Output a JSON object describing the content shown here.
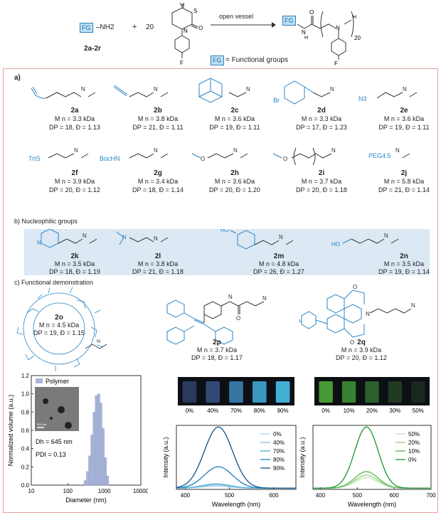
{
  "scheme": {
    "reactant_fg": "FG",
    "reactant_nh2": "–NH2",
    "reactant_label": "2a-2r",
    "plus": "+",
    "equiv": "20",
    "arrow_label": "open vessel",
    "product_fg": "FG",
    "product_sub": "20",
    "legend_fg": "FG",
    "legend_text": "= Functional groups",
    "atom_S": "S",
    "atom_O": "O",
    "atom_N": "N",
    "atom_F": "F",
    "atom_H": "H"
  },
  "section_a": {
    "label": "a)",
    "compounds": [
      {
        "id": "2a",
        "mn": "M n = 3.3 kDa",
        "dp": "DP = 18, Đ = 1.13"
      },
      {
        "id": "2b",
        "mn": "M n = 3.8 kDa",
        "dp": "DP = 21, Đ = 1.11"
      },
      {
        "id": "2c",
        "mn": "M n = 3.6 kDa",
        "dp": "DP = 19, Đ = 1.11"
      },
      {
        "id": "2d",
        "mn": "M n = 3.3 kDa",
        "dp": "DP = 17, Đ = 1.23"
      },
      {
        "id": "2e",
        "mn": "M n = 3.6 kDa",
        "dp": "DP = 19, Đ = 1.11"
      },
      {
        "id": "2f",
        "mn": "M n = 3.9 kDa",
        "dp": "DP = 20, Đ = 1.12"
      },
      {
        "id": "2g",
        "mn": "M n = 3.4 kDa",
        "dp": "DP = 18, Đ = 1.14"
      },
      {
        "id": "2h",
        "mn": "M n = 3.6 kDa",
        "dp": "DP = 20, Đ = 1.20"
      },
      {
        "id": "2i",
        "mn": "M n = 3.7 kDa",
        "dp": "DP = 20, Đ = 1.18"
      },
      {
        "id": "2j",
        "mn": "M n = 5.8 kDa",
        "dp": "DP = 21, Đ = 1.14"
      }
    ],
    "fg_labels": {
      "br": "Br",
      "n3": "N3",
      "trts": "TrtS",
      "bochn": "BocHN",
      "peg": "PEG4.5"
    }
  },
  "section_b": {
    "label": "b) Nucleophilic groups",
    "compounds": [
      {
        "id": "2k",
        "mn": "M n = 3.5 kDa",
        "dp": "DP = 18, Đ = 1.19"
      },
      {
        "id": "2l",
        "mn": "M n = 3.8 kDa",
        "dp": "DP = 21, Đ = 1.18"
      },
      {
        "id": "2m",
        "mn": "M n = 4.8 kDa",
        "dp": "DP = 26, Đ = 1.27"
      },
      {
        "id": "2n",
        "mn": "M n = 3.5 kDa",
        "dp": "DP = 19, Đ = 1.14"
      }
    ],
    "fg_labels": {
      "n": "N",
      "ho": "HO"
    }
  },
  "section_c": {
    "label": "c) Functional demonstration",
    "compounds": [
      {
        "id": "2o",
        "mn": "M n = 4.5 kDa",
        "dp": "DP = 19, Đ = 1.15"
      },
      {
        "id": "2p",
        "mn": "M n = 3.7 kDa",
        "dp": "DP = 18, Đ = 1.17"
      },
      {
        "id": "2q",
        "mn": "M n = 3.9 kDa",
        "dp": "DP = 20, Đ = 1.12"
      }
    ]
  },
  "chart_data": [
    {
      "type": "bar",
      "legend": "Polymer",
      "xlabel": "Diameter (nm)",
      "ylabel": "Normalized volume (a.u.)",
      "xscale": "log",
      "xlim": [
        10,
        10000
      ],
      "xticks": [
        "10",
        "100",
        "1000",
        "10000"
      ],
      "ylim": [
        0,
        1.2
      ],
      "yticks": [
        "0.0",
        "0.2",
        "0.4",
        "0.6",
        "0.8",
        "1.0",
        "1.2"
      ],
      "x": [
        300,
        350,
        400,
        460,
        530,
        610,
        700,
        800,
        920,
        1060,
        1220
      ],
      "values": [
        0.05,
        0.15,
        0.32,
        0.55,
        0.8,
        0.98,
        1.0,
        0.9,
        0.62,
        0.3,
        0.1
      ],
      "annotations": {
        "dh": "Dh = 645 nm",
        "pdi": "PDI = 0.13",
        "scale": "500 nm"
      }
    },
    {
      "type": "line",
      "xlabel": "Wavelength (nm)",
      "ylabel": "Intensity (a.u.)",
      "xlim": [
        380,
        650
      ],
      "xticks": [
        "400",
        "500",
        "600"
      ],
      "legend_position": "right",
      "vial_labels": [
        "0%",
        "40%",
        "70%",
        "80%",
        "90%"
      ],
      "series": [
        {
          "name": "0%",
          "peak": 470,
          "height": 0.03,
          "color": "#b7dcee"
        },
        {
          "name": "40%",
          "peak": 470,
          "height": 0.05,
          "color": "#8cc7e4"
        },
        {
          "name": "70%",
          "peak": 470,
          "height": 0.07,
          "color": "#5aaed6"
        },
        {
          "name": "80%",
          "peak": 475,
          "height": 0.35,
          "color": "#2b88c0"
        },
        {
          "name": "90%",
          "peak": 475,
          "height": 1.0,
          "color": "#1a5f95"
        }
      ]
    },
    {
      "type": "line",
      "xlabel": "Wavelength (nm)",
      "ylabel": "Intensity (a.u.)",
      "xlim": [
        380,
        700
      ],
      "xticks": [
        "400",
        "500",
        "600",
        "700"
      ],
      "legend_position": "right",
      "vial_labels": [
        "0%",
        "10%",
        "20%",
        "30%",
        "50%"
      ],
      "series": [
        {
          "name": "50%",
          "peak": 525,
          "height": 0.17,
          "color": "#c6e6b8"
        },
        {
          "name": "20%",
          "peak": 525,
          "height": 0.21,
          "color": "#9ed48a"
        },
        {
          "name": "10%",
          "peak": 525,
          "height": 0.27,
          "color": "#62b85a"
        },
        {
          "name": "0%",
          "peak": 525,
          "height": 1.0,
          "color": "#2a9a3a"
        }
      ]
    }
  ]
}
